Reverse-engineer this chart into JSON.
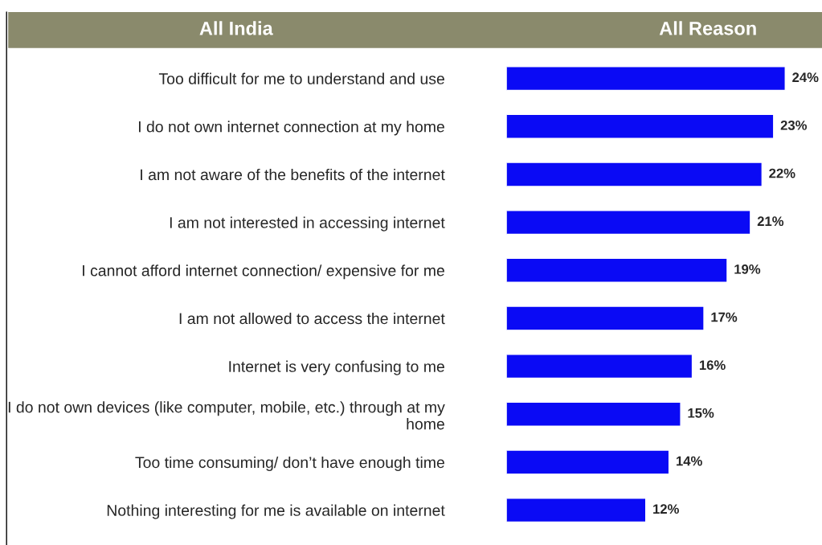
{
  "chart_data": {
    "type": "bar",
    "orientation": "horizontal",
    "ylabel": "All India",
    "title": "All Reason",
    "categories": [
      "Too difficult for me to understand and use",
      "I do not own internet connection at my home",
      "I am not aware of the benefits of the internet",
      "I am not interested in accessing internet",
      "I cannot afford internet connection/ expensive for me",
      "I am not allowed to access the internet",
      "Internet is very confusing to me",
      "I do not own devices (like computer, mobile, etc.) through at my home",
      "Too time consuming/ don’t have enough time",
      "Nothing interesting for me is available on internet"
    ],
    "values": [
      24,
      23,
      22,
      21,
      19,
      17,
      16,
      15,
      14,
      12
    ],
    "value_labels": [
      "24%",
      "23%",
      "22%",
      "21%",
      "19%",
      "17%",
      "16%",
      "15%",
      "14%",
      "12%"
    ],
    "color": "#0a0af5",
    "grid": false,
    "legend": false
  }
}
